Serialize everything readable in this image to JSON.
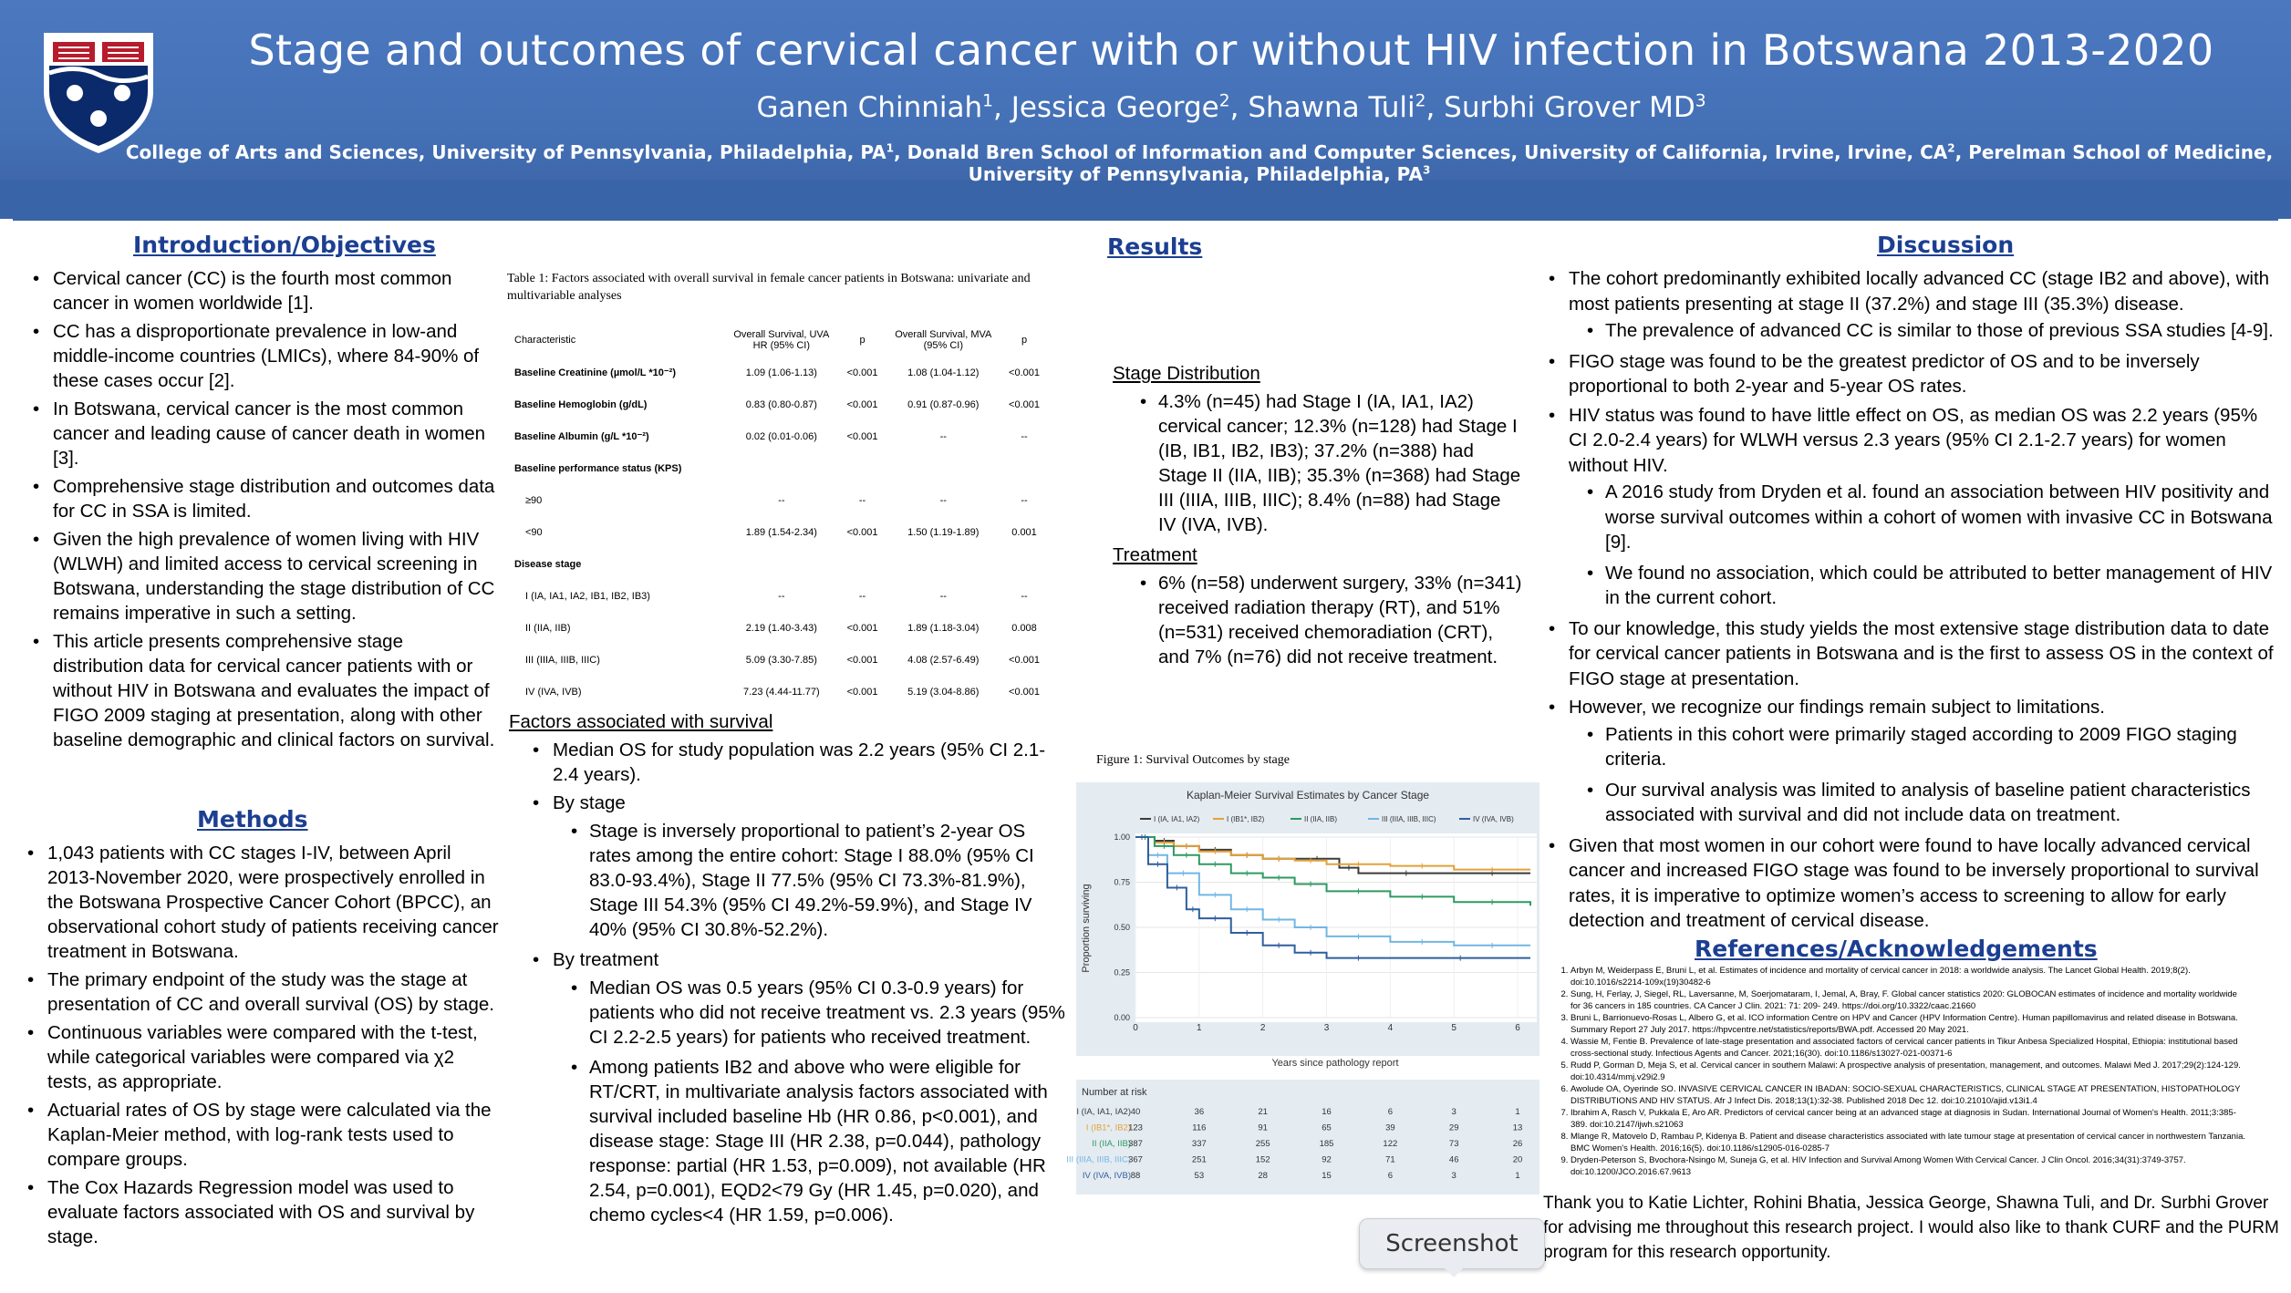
{
  "header": {
    "title": "Stage and outcomes of cervical cancer with or without HIV infection in Botswana 2013-2020",
    "authors": [
      {
        "name": "Ganen Chinniah",
        "sup": "1"
      },
      {
        "name": "Jessica George",
        "sup": "2"
      },
      {
        "name": "Shawna Tuli",
        "sup": "2"
      },
      {
        "name": "Surbhi Grover MD",
        "sup": "3"
      }
    ],
    "affiliations": [
      {
        "name": "College of Arts and Sciences, University of Pennsylvania, Philadelphia, PA",
        "sup": "1"
      },
      {
        "name": "Donald Bren School of Information and Computer Sciences, University of California, Irvine, Irvine, CA",
        "sup": "2"
      },
      {
        "name": "Perelman School of Medicine, University of Pennsylvania, Philadelphia, PA",
        "sup": "3"
      }
    ]
  },
  "intro": {
    "heading": "Introduction/Objectives",
    "bullets": [
      "Cervical cancer (CC) is the fourth most common cancer in women worldwide [1].",
      "CC has a disproportionate prevalence in low-and middle-income countries (LMICs), where 84-90% of these cases occur [2].",
      "In Botswana, cervical cancer is the most common cancer and leading cause of cancer death in women [3].",
      "Comprehensive stage distribution and outcomes data for CC in SSA is limited.",
      "Given the high prevalence of women living with HIV (WLWH) and limited access to cervical screening in Botswana, understanding the stage distribution of CC remains imperative in such a setting.",
      "This article presents comprehensive stage distribution data for cervical cancer patients with or without HIV in Botswana and evaluates the impact of FIGO 2009 staging at presentation, along with other baseline demographic and clinical factors on survival."
    ]
  },
  "methods": {
    "heading": "Methods",
    "bullets": [
      "1,043 patients with CC stages I-IV, between April 2013-November 2020, were prospectively enrolled in the Botswana Prospective Cancer Cohort (BPCC), an observational cohort study of patients receiving cancer treatment in Botswana.",
      "The primary endpoint of the study was the stage at presentation of CC and overall survival (OS) by stage.",
      "Continuous variables were compared with the t-test, while categorical variables were compared via χ2 tests, as appropriate.",
      "Actuarial rates of OS by stage were calculated via the Kaplan-Meier method, with log-rank tests used to compare groups.",
      "The Cox Hazards Regression model was used to evaluate factors associated with OS and survival by stage."
    ]
  },
  "table1": {
    "caption": "Table 1: Factors associated with overall survival in female cancer patients in Botswana: univariate and multivariable analyses",
    "headers": [
      "Characteristic",
      "Overall Survival, UVA HR (95% CI)",
      "p",
      "Overall Survival, MVA (95% CI)",
      "p"
    ],
    "rows": [
      {
        "label": "Baseline Creatinine (µmol/L *10⁻²)",
        "bold": true,
        "uva": "1.09 (1.06-1.13)",
        "p1": "<0.001",
        "mva": "1.08 (1.04-1.12)",
        "p2": "<0.001"
      },
      {
        "label": "Baseline Hemoglobin (g/dL)",
        "bold": true,
        "uva": "0.83 (0.80-0.87)",
        "p1": "<0.001",
        "mva": "0.91 (0.87-0.96)",
        "p2": "<0.001"
      },
      {
        "label": "Baseline Albumin (g/L *10⁻²)",
        "bold": true,
        "uva": "0.02 (0.01-0.06)",
        "p1": "<0.001",
        "mva": "--",
        "p2": "--"
      },
      {
        "label": "Baseline performance status (KPS)",
        "bold": true,
        "uva": "",
        "p1": "",
        "mva": "",
        "p2": ""
      },
      {
        "label": "≥90",
        "bold": false,
        "uva": "--",
        "p1": "--",
        "mva": "--",
        "p2": "--"
      },
      {
        "label": "<90",
        "bold": false,
        "uva": "1.89 (1.54-2.34)",
        "p1": "<0.001",
        "mva": "1.50 (1.19-1.89)",
        "p2": "0.001"
      },
      {
        "label": "Disease stage",
        "bold": true,
        "uva": "",
        "p1": "",
        "mva": "",
        "p2": ""
      },
      {
        "label": "I (IA, IA1, IA2, IB1, IB2, IB3)",
        "bold": false,
        "uva": "--",
        "p1": "--",
        "mva": "--",
        "p2": "--"
      },
      {
        "label": "II (IIA, IIB)",
        "bold": false,
        "uva": "2.19 (1.40-3.43)",
        "p1": "<0.001",
        "mva": "1.89 (1.18-3.04)",
        "p2": "0.008"
      },
      {
        "label": "III (IIIA, IIIB, IIIC)",
        "bold": false,
        "uva": "5.09 (3.30-7.85)",
        "p1": "<0.001",
        "mva": "4.08 (2.57-6.49)",
        "p2": "<0.001"
      },
      {
        "label": "IV (IVA, IVB)",
        "bold": false,
        "uva": "7.23 (4.44-11.77)",
        "p1": "<0.001",
        "mva": "5.19 (3.04-8.86)",
        "p2": "<0.001"
      }
    ]
  },
  "factors": {
    "heading": "Factors associated with survival",
    "median": "Median OS for study population was 2.2 years (95% CI 2.1-2.4 years).",
    "by_stage_label": "By stage",
    "by_stage": "Stage is inversely proportional to patient’s 2-year OS rates among the entire cohort: Stage I 88.0% (95% CI 83.0-93.4%), Stage II 77.5% (95% CI 73.3%-81.9%), Stage III 54.3% (95% CI 49.2%-59.9%), and Stage IV 40% (95% CI 30.8%-52.2%).",
    "by_treatment_label": "By treatment",
    "by_treatment": [
      "Median OS was 0.5 years (95% CI 0.3-0.9 years) for patients who did not receive treatment vs. 2.3 years (95% CI 2.2-2.5 years) for patients who received treatment.",
      "Among patients IB2 and above who were eligible for RT/CRT, in multivariate analysis factors associated with survival included baseline Hb (HR 0.86, p<0.001), and disease stage: Stage III (HR 2.38, p=0.044), pathology response: partial (HR 1.53, p=0.009), not available (HR 2.54, p=0.001), EQD2<79 Gy (HR 1.45, p=0.020), and chemo cycles<4 (HR 1.59, p=0.006)."
    ]
  },
  "results": {
    "heading": "Results",
    "stage_heading": "Stage Distribution",
    "stage_text": "4.3% (n=45) had Stage I (IA, IA1, IA2) cervical cancer; 12.3% (n=128) had Stage I (IB, IB1, IB2, IB3); 37.2% (n=388) had Stage II (IIA, IIB); 35.3% (n=368) had Stage III (IIIA, IIIB, IIIC); 8.4% (n=88) had Stage IV (IVA, IVB).",
    "treatment_heading": "Treatment",
    "treatment_text": "6% (n=58) underwent surgery, 33% (n=341) received radiation therapy (RT), and 51% (n=531) received chemoradiation (CRT), and 7% (n=76) did not receive treatment.",
    "figure_caption": "Figure 1: Survival Outcomes by stage"
  },
  "chart_data": {
    "type": "line",
    "title": "Kaplan-Meier Survival Estimates by Cancer Stage",
    "xlabel": "Years since pathology report",
    "ylabel": "Proportion surviving",
    "xlim": [
      0,
      6.3
    ],
    "ylim": [
      0,
      1
    ],
    "xticks": [
      "0",
      "1",
      "2",
      "3",
      "4",
      "5",
      "6"
    ],
    "yticks": [
      "0.00",
      "0.25",
      "0.50",
      "0.75",
      "1.00"
    ],
    "legend_position": "top",
    "series": [
      {
        "name": "I (IA, IA1, IA2)",
        "color": "#3b3b3b",
        "x": [
          0,
          0.3,
          0.6,
          1.0,
          1.5,
          2.0,
          2.5,
          3.2,
          3.5,
          5.0,
          6.2
        ],
        "y": [
          1.0,
          0.98,
          0.95,
          0.93,
          0.9,
          0.88,
          0.88,
          0.83,
          0.8,
          0.8,
          0.8
        ]
      },
      {
        "name": "I (IB1*, IB2)",
        "color": "#e3a13a",
        "x": [
          0,
          0.3,
          0.6,
          1.0,
          1.5,
          2.0,
          2.5,
          3.0,
          4.0,
          5.0,
          6.2
        ],
        "y": [
          1.0,
          0.97,
          0.95,
          0.92,
          0.9,
          0.88,
          0.87,
          0.85,
          0.84,
          0.82,
          0.82
        ]
      },
      {
        "name": "II (IIA, IIB)",
        "color": "#2e9a62",
        "x": [
          0,
          0.3,
          0.6,
          1.0,
          1.5,
          2.0,
          2.5,
          3.0,
          4.0,
          5.0,
          6.2
        ],
        "y": [
          1.0,
          0.95,
          0.9,
          0.85,
          0.8,
          0.775,
          0.74,
          0.7,
          0.67,
          0.64,
          0.62
        ]
      },
      {
        "name": "III (IIIA, IIIB, IIIC)",
        "color": "#72b6e3",
        "x": [
          0,
          0.2,
          0.5,
          1.0,
          1.5,
          2.0,
          2.5,
          3.0,
          4.0,
          5.0,
          6.2
        ],
        "y": [
          1.0,
          0.9,
          0.8,
          0.68,
          0.6,
          0.543,
          0.5,
          0.45,
          0.42,
          0.4,
          0.4
        ]
      },
      {
        "name": "IV (IVA, IVB)",
        "color": "#2f5f9e",
        "x": [
          0,
          0.2,
          0.5,
          0.8,
          1.0,
          1.5,
          2.0,
          2.5,
          3.0,
          4.0,
          6.2
        ],
        "y": [
          1.0,
          0.85,
          0.72,
          0.6,
          0.55,
          0.47,
          0.4,
          0.36,
          0.33,
          0.33,
          0.33
        ]
      }
    ],
    "risk_table": {
      "label": "Number at risk",
      "times": [
        "0",
        "1",
        "2",
        "3",
        "4",
        "5",
        "6"
      ],
      "rows": [
        {
          "name": "I (IA, IA1, IA2)",
          "color": "#3b3b3b",
          "values": [
            "40",
            "36",
            "21",
            "16",
            "6",
            "3",
            "1"
          ]
        },
        {
          "name": "I (IB1*, IB2)",
          "color": "#e3a13a",
          "values": [
            "123",
            "116",
            "91",
            "65",
            "39",
            "29",
            "13"
          ]
        },
        {
          "name": "II (IIA, IIB)",
          "color": "#2e9a62",
          "values": [
            "387",
            "337",
            "255",
            "185",
            "122",
            "73",
            "26"
          ]
        },
        {
          "name": "III (IIIA, IIIB, IIIC)",
          "color": "#72b6e3",
          "values": [
            "367",
            "251",
            "152",
            "92",
            "71",
            "46",
            "20"
          ]
        },
        {
          "name": "IV (IVA, IVB)",
          "color": "#2f5f9e",
          "values": [
            "88",
            "53",
            "28",
            "15",
            "6",
            "3",
            "1"
          ]
        }
      ]
    }
  },
  "discussion": {
    "heading": "Discussion",
    "b1": "The cohort predominantly exhibited locally advanced CC (stage IB2 and above), with most patients presenting at stage II (37.2%) and stage III (35.3%) disease.",
    "b1_sub": "The prevalence of advanced CC is similar to those of previous SSA studies [4-9].",
    "b2": "FIGO stage was found to be the greatest predictor of OS and to be inversely proportional to both 2-year and 5-year OS rates.",
    "b3": "HIV status was found to have little effect on OS, as median OS was 2.2 years (95% CI 2.0-2.4 years) for WLWH versus 2.3 years (95% CI 2.1-2.7 years) for women without HIV.",
    "b3_sub1": "A 2016 study from Dryden et al. found an association between HIV positivity and worse survival outcomes within a cohort of women with invasive CC in Botswana [9].",
    "b3_sub2": "We found no association, which could be attributed to better management of HIV in the current cohort.",
    "b4": "To our knowledge, this study yields the most extensive stage distribution data to date for cervical cancer patients in Botswana and is the first to assess OS in the context of FIGO stage at presentation.",
    "b5": "However, we recognize our findings remain subject to limitations.",
    "b5_sub1": "Patients in this cohort were primarily staged according to 2009 FIGO staging criteria.",
    "b5_sub2": "Our survival analysis was limited to analysis of baseline patient characteristics associated with survival and did not include data on treatment.",
    "b6": "Given that most women in our cohort were found to have locally advanced cervical cancer and increased FIGO stage was found to be inversely proportional to survival rates, it is imperative to optimize women’s access to screening to allow for early detection and treatment of cervical disease."
  },
  "references": {
    "heading": "References/Acknowledgements",
    "items": [
      "Arbyn M, Weiderpass E, Bruni L, et al. Estimates of incidence and mortality of cervical cancer in 2018: a worldwide analysis. The Lancet Global Health. 2019;8(2). doi:10.1016/s2214-109x(19)30482-6",
      "Sung, H, Ferlay, J, Siegel, RL, Laversanne, M, Soerjomataram, I, Jemal, A, Bray, F. Global cancer statistics 2020: GLOBOCAN estimates of incidence and mortality worldwide for 36 cancers in 185 countries. CA Cancer J Clin. 2021: 71: 209- 249. https://doi.org/10.3322/caac.21660",
      "Bruni L, Barrionuevo-Rosas L, Albero G, et al. ICO information Centre on HPV and Cancer (HPV Information Centre). Human papillomavirus and related disease in Botswana. Summary Report 27 July 2017. https://hpvcentre.net/statistics/reports/BWA.pdf. Accessed 20 May 2021.",
      "Wassie M, Fentie B. Prevalence of late-stage presentation and associated factors of cervical cancer patients in Tikur Anbesa Specialized Hospital, Ethiopia: institutional based cross-sectional study. Infectious Agents and Cancer. 2021;16(30). doi:10.1186/s13027-021-00371-6",
      "Rudd P, Gorman D, Meja S, et al. Cervical cancer in southern Malawi: A prospective analysis of presentation, management, and outcomes. Malawi Med J. 2017;29(2):124-129. doi:10.4314/mmj.v29i2.9",
      "Awolude OA, Oyerinde SO. INVASIVE CERVICAL CANCER IN IBADAN: SOCIO-SEXUAL CHARACTERISTICS, CLINICAL STAGE AT PRESENTATION, HISTOPATHOLOGY DISTRIBUTIONS AND HIV STATUS. Afr J Infect Dis. 2018;13(1):32-38. Published 2018 Dec 12. doi:10.21010/ajid.v13i1.4",
      "Ibrahim A, Rasch V, Pukkala E, Aro AR. Predictors of cervical cancer being at an advanced stage at diagnosis in Sudan. International Journal of Women's Health. 2011;3:385-389. doi:10.2147/ijwh.s21063",
      "Mlange R, Matovelo D, Rambau P, Kidenya B. Patient and disease characteristics associated with late tumour stage at presentation of cervical cancer in northwestern Tanzania. BMC Women's Health. 2016;16(5). doi:10.1186/s12905-016-0285-7",
      "Dryden-Peterson S, Bvochora-Nsingo M, Suneja G, et al. HIV Infection and Survival Among Women With Cervical Cancer. J Clin Oncol. 2016;34(31):3749-3757. doi:10.1200/JCO.2016.67.9613"
    ],
    "thanks": "Thank you to Katie Lichter, Rohini Bhatia, Jessica George, Shawna Tuli, and Dr. Surbhi Grover for advising me throughout this research project. I would also like to thank CURF and the PURM program for this research opportunity."
  },
  "overlay": {
    "screenshot_label": "Screenshot"
  }
}
